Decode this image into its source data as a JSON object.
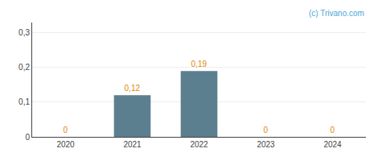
{
  "chart_data": {
    "type": "bar",
    "categories": [
      "2020",
      "2021",
      "2022",
      "2023",
      "2024"
    ],
    "values": [
      0,
      0.12,
      0.19,
      0,
      0
    ],
    "value_labels": [
      "0",
      "0,12",
      "0,19",
      "0",
      "0"
    ],
    "data_labels": true,
    "color": "#5b7f8f",
    "ylim": [
      0,
      0.33
    ],
    "yticks": [
      0,
      {
        "value": 0.1,
        "label": "0,1"
      },
      {
        "value": 0.2,
        "label": "0,2"
      },
      {
        "value": 0.3,
        "label": "0,3"
      }
    ],
    "grid": true,
    "annotations": [
      "(c) Trivano.com"
    ]
  }
}
